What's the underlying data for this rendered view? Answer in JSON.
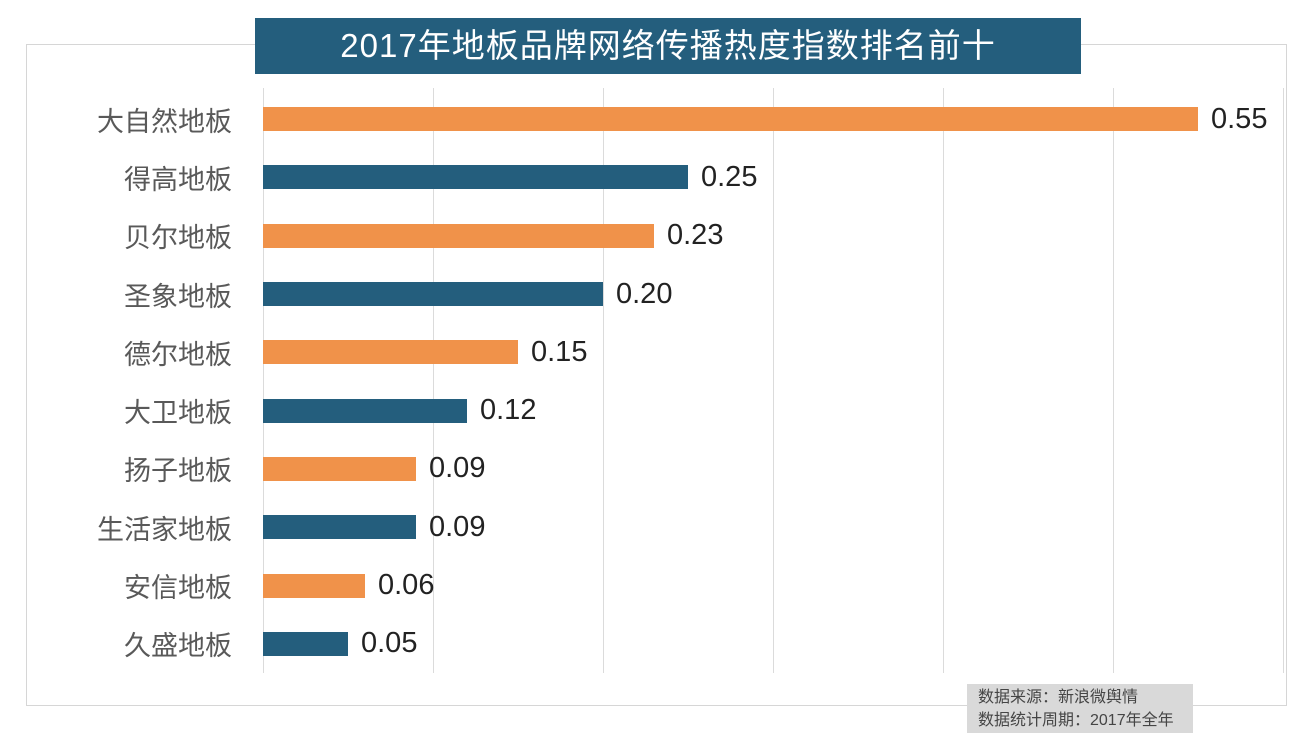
{
  "title": "2017年地板品牌网络传播热度指数排名前十",
  "footer": {
    "line1": "数据来源：新浪微舆情",
    "line2": "数据统计周期：2017年全年"
  },
  "colors": {
    "orange": "#f0924a",
    "teal": "#245e7d",
    "title_bg": "#245e7d",
    "title_text": "#ffffff",
    "gridline": "#dbdbdb",
    "frame_border": "#d6d6d6",
    "category_label": "#595959",
    "value_label": "#222222",
    "footer_bg": "#d9d9d9",
    "footer_text": "#454545"
  },
  "chart_data": {
    "type": "bar",
    "orientation": "horizontal",
    "title": "2017年地板品牌网络传播热度指数排名前十",
    "categories": [
      "大自然地板",
      "得高地板",
      "贝尔地板",
      "圣象地板",
      "德尔地板",
      "大卫地板",
      "扬子地板",
      "生活家地板",
      "安信地板",
      "久盛地板"
    ],
    "values": [
      0.55,
      0.25,
      0.23,
      0.2,
      0.15,
      0.12,
      0.09,
      0.09,
      0.06,
      0.05
    ],
    "value_labels": [
      "0.55",
      "0.25",
      "0.23",
      "0.20",
      "0.15",
      "0.12",
      "0.09",
      "0.09",
      "0.06",
      "0.05"
    ],
    "bar_colors": [
      "#f0924a",
      "#245e7d",
      "#f0924a",
      "#245e7d",
      "#f0924a",
      "#245e7d",
      "#f0924a",
      "#245e7d",
      "#f0924a",
      "#245e7d"
    ],
    "xlabel": "",
    "ylabel": "",
    "xlim": [
      0,
      0.6
    ],
    "grid": true,
    "gridline_interval": 0.1,
    "x_tick_labels_visible": false,
    "legend": false,
    "value_labels_visible": true,
    "source_note": "数据来源：新浪微舆情",
    "period_note": "数据统计周期：2017年全年"
  }
}
